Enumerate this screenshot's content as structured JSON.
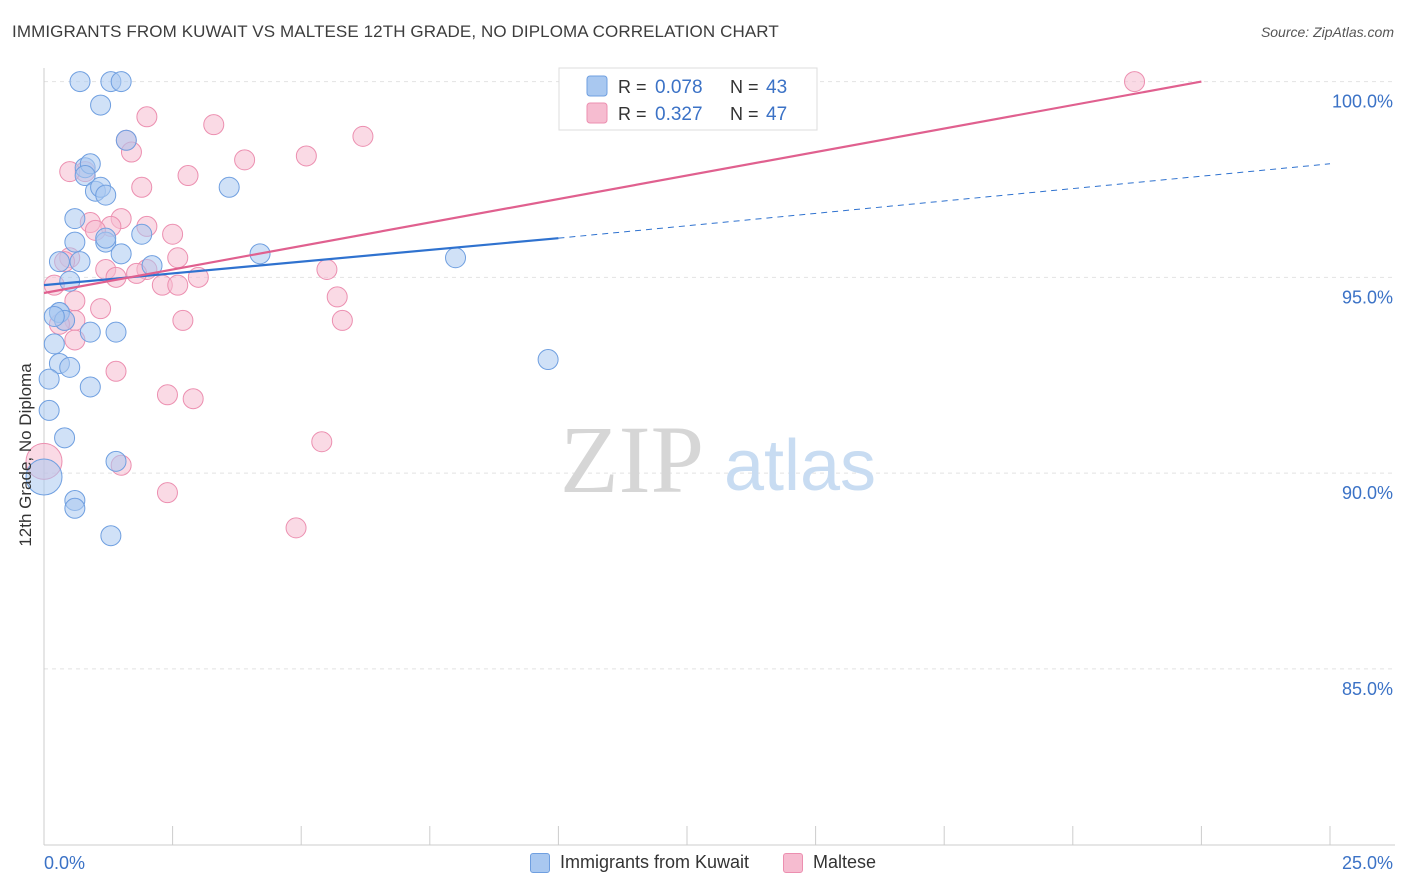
{
  "header": {
    "title": "IMMIGRANTS FROM KUWAIT VS MALTESE 12TH GRADE, NO DIPLOMA CORRELATION CHART",
    "source": "Source: ZipAtlas.com"
  },
  "watermark": {
    "zip": "ZIP",
    "atlas": "atlas"
  },
  "legend_top": {
    "rows": [
      {
        "r_label": "R =",
        "r_value": "0.078",
        "n_label": "N =",
        "n_value": "43"
      },
      {
        "r_label": "R =",
        "r_value": "0.327",
        "n_label": "N =",
        "n_value": "47"
      }
    ]
  },
  "legend_bottom": {
    "items": [
      {
        "label": "Immigrants from Kuwait"
      },
      {
        "label": "Maltese"
      }
    ]
  },
  "colors": {
    "kuwait_fill": "#a9c8f0",
    "kuwait_stroke": "#6f9fe0",
    "kuwait_line": "#2f72cf",
    "maltese_fill": "#f6bcd0",
    "maltese_stroke": "#ec8fb0",
    "maltese_line": "#e0608f",
    "tick_label": "#3b72c6",
    "grid": "#e2e2e2"
  },
  "chart_data": {
    "type": "scatter",
    "title": "IMMIGRANTS FROM KUWAIT VS MALTESE 12TH GRADE, NO DIPLOMA CORRELATION CHART",
    "xlabel": "",
    "ylabel": "12th Grade, No Diploma",
    "xlim": [
      0,
      25
    ],
    "ylim": [
      80.5,
      100.5
    ],
    "x_tick_labels": [
      "0.0%",
      "25.0%"
    ],
    "y_ticks": [
      85,
      90,
      95,
      100
    ],
    "y_tick_labels": [
      "85.0%",
      "90.0%",
      "95.0%",
      "100.0%"
    ],
    "grid": true,
    "legend_placement": "top-center and bottom",
    "series": [
      {
        "name": "Immigrants from Kuwait",
        "r": 0.078,
        "n": 43,
        "trend": {
          "x0": 0,
          "y0": 94.8,
          "x1": 10,
          "y1": 96.0,
          "dashed_to_x": 25,
          "dashed_to_y": 97.9
        },
        "points": [
          [
            0.7,
            100.0
          ],
          [
            1.3,
            100.0
          ],
          [
            1.5,
            100.0
          ],
          [
            1.1,
            99.4
          ],
          [
            1.6,
            98.5
          ],
          [
            0.8,
            97.8
          ],
          [
            0.9,
            97.9
          ],
          [
            0.8,
            97.6
          ],
          [
            1.0,
            97.2
          ],
          [
            1.1,
            97.3
          ],
          [
            1.2,
            97.1
          ],
          [
            3.6,
            97.3
          ],
          [
            0.6,
            96.5
          ],
          [
            0.6,
            95.9
          ],
          [
            1.2,
            95.9
          ],
          [
            1.2,
            96.0
          ],
          [
            1.9,
            96.1
          ],
          [
            1.5,
            95.6
          ],
          [
            4.2,
            95.6
          ],
          [
            8.0,
            95.5
          ],
          [
            0.3,
            95.4
          ],
          [
            2.1,
            95.3
          ],
          [
            0.5,
            94.9
          ],
          [
            0.3,
            94.1
          ],
          [
            0.3,
            94.1
          ],
          [
            0.9,
            93.6
          ],
          [
            1.4,
            93.6
          ],
          [
            0.2,
            93.3
          ],
          [
            0.3,
            92.8
          ],
          [
            0.5,
            92.7
          ],
          [
            9.8,
            92.9
          ],
          [
            0.1,
            92.4
          ],
          [
            0.9,
            92.2
          ],
          [
            0.1,
            91.6
          ],
          [
            0.4,
            90.9
          ],
          [
            1.4,
            90.3
          ],
          [
            0.0,
            89.9
          ],
          [
            0.6,
            89.3
          ],
          [
            0.6,
            89.1
          ],
          [
            1.3,
            88.4
          ],
          [
            0.4,
            93.9
          ],
          [
            0.2,
            94.0
          ],
          [
            0.7,
            95.4
          ]
        ]
      },
      {
        "name": "Maltese",
        "r": 0.327,
        "n": 47,
        "trend": {
          "x0": 0,
          "y0": 94.6,
          "x1": 22.5,
          "y1": 100.0
        },
        "points": [
          [
            21.2,
            100.0
          ],
          [
            2.0,
            99.1
          ],
          [
            3.3,
            98.9
          ],
          [
            6.2,
            98.6
          ],
          [
            1.6,
            98.5
          ],
          [
            1.7,
            98.2
          ],
          [
            5.1,
            98.1
          ],
          [
            3.9,
            98.0
          ],
          [
            0.8,
            97.7
          ],
          [
            2.8,
            97.6
          ],
          [
            1.9,
            97.3
          ],
          [
            0.9,
            96.4
          ],
          [
            1.5,
            96.5
          ],
          [
            1.3,
            96.3
          ],
          [
            1.0,
            96.2
          ],
          [
            2.0,
            96.3
          ],
          [
            2.5,
            96.1
          ],
          [
            0.5,
            95.5
          ],
          [
            0.4,
            95.4
          ],
          [
            2.6,
            95.5
          ],
          [
            1.2,
            95.2
          ],
          [
            2.0,
            95.2
          ],
          [
            1.4,
            95.0
          ],
          [
            5.5,
            95.2
          ],
          [
            0.2,
            94.8
          ],
          [
            2.3,
            94.8
          ],
          [
            2.6,
            94.8
          ],
          [
            5.7,
            94.5
          ],
          [
            0.6,
            94.4
          ],
          [
            1.1,
            94.2
          ],
          [
            0.4,
            93.9
          ],
          [
            0.6,
            93.9
          ],
          [
            2.7,
            93.9
          ],
          [
            5.8,
            93.9
          ],
          [
            0.3,
            93.8
          ],
          [
            0.6,
            93.4
          ],
          [
            1.4,
            92.6
          ],
          [
            2.4,
            92.0
          ],
          [
            2.9,
            91.9
          ],
          [
            5.4,
            90.8
          ],
          [
            0.0,
            90.3
          ],
          [
            1.5,
            90.2
          ],
          [
            2.4,
            89.5
          ],
          [
            4.9,
            88.6
          ],
          [
            0.5,
            97.7
          ],
          [
            1.8,
            95.1
          ],
          [
            3.0,
            95.0
          ]
        ]
      }
    ]
  }
}
